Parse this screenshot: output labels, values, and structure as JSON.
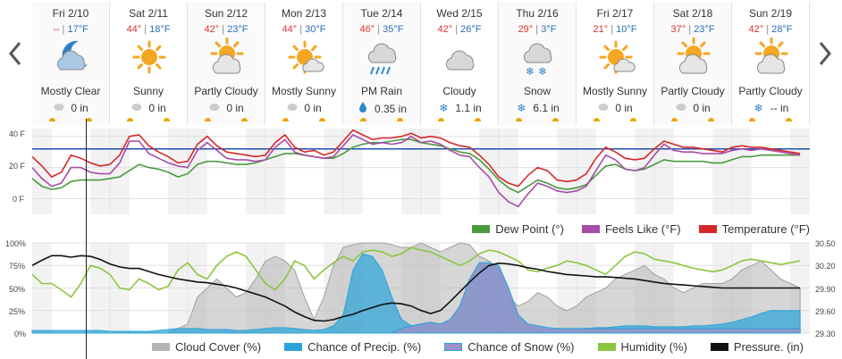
{
  "days": [
    {
      "day": "Fri 2/10",
      "hi": "--",
      "lo": "17°F",
      "icon": "moon-cloud-icon",
      "cond": "Mostly Clear",
      "precip_icon": "drop-gray-icon",
      "precip": "0 in"
    },
    {
      "day": "Sat 2/11",
      "hi": "44°",
      "lo": "18°F",
      "icon": "sun-icon",
      "cond": "Sunny",
      "precip_icon": "drop-gray-icon",
      "precip": "0 in"
    },
    {
      "day": "Sun 2/12",
      "hi": "42°",
      "lo": "23°F",
      "icon": "partly-cloudy-icon",
      "cond": "Partly Cloudy",
      "precip_icon": "drop-gray-icon",
      "precip": "0 in"
    },
    {
      "day": "Mon 2/13",
      "hi": "44°",
      "lo": "30°F",
      "icon": "mostly-sunny-icon",
      "cond": "Mostly Sunny",
      "precip_icon": "drop-gray-icon",
      "precip": "0 in"
    },
    {
      "day": "Tue 2/14",
      "hi": "46°",
      "lo": "35°F",
      "icon": "rain-icon",
      "cond": "PM Rain",
      "precip_icon": "drop-blue-icon",
      "precip": "0.35 in"
    },
    {
      "day": "Wed 2/15",
      "hi": "42°",
      "lo": "26°F",
      "icon": "cloud-icon",
      "cond": "Cloudy",
      "precip_icon": "snowflake-icon",
      "precip": "1.1 in"
    },
    {
      "day": "Thu 2/16",
      "hi": "29°",
      "lo": "3°F",
      "icon": "snow-icon",
      "cond": "Snow",
      "precip_icon": "snowflake-icon",
      "precip": "6.1 in"
    },
    {
      "day": "Fri 2/17",
      "hi": "21°",
      "lo": "10°F",
      "icon": "mostly-sunny-icon",
      "cond": "Mostly Sunny",
      "precip_icon": "drop-gray-icon",
      "precip": "0 in"
    },
    {
      "day": "Sat 2/18",
      "hi": "37°",
      "lo": "23°F",
      "icon": "partly-cloudy-icon",
      "cond": "Partly Cloudy",
      "precip_icon": "drop-gray-icon",
      "precip": "0 in"
    },
    {
      "day": "Sun 2/19",
      "hi": "42°",
      "lo": "28°F",
      "icon": "partly-cloudy-icon",
      "cond": "Partly Cloudy",
      "precip_icon": "snowflake-icon",
      "precip": "-- in"
    }
  ],
  "colors": {
    "temperature": "#d62728",
    "feels_like": "#a64ca6",
    "dew_point": "#4a9a3f",
    "cloud": "#b5b5b5",
    "precip": "#2aa3d8",
    "snow": "#9e8fc7",
    "humidity": "#8cc63f",
    "pressure": "#111111",
    "freezing": "#1f4fb0"
  },
  "chart_data": [
    {
      "type": "line",
      "ylim": [
        -10,
        45
      ],
      "yticks": [
        {
          "v": 40,
          "label": "40 F"
        },
        {
          "v": 20,
          "label": "20 F"
        },
        {
          "v": 0,
          "label": "0 F"
        }
      ],
      "reference_line": 32,
      "x_hours": [
        0,
        3,
        6,
        9,
        12,
        15,
        18,
        21,
        24,
        27,
        30,
        33,
        36,
        39,
        42,
        45,
        48,
        51,
        54,
        57,
        60,
        63,
        66,
        69,
        72,
        75,
        78,
        81,
        84,
        87,
        90,
        93,
        96,
        99,
        102,
        105,
        108,
        111,
        114,
        117,
        120,
        123,
        126,
        129,
        132,
        135,
        138,
        141,
        144,
        147,
        150,
        153,
        156,
        159,
        162,
        165,
        168,
        171,
        174,
        177,
        180,
        183,
        186,
        189,
        192,
        195,
        198,
        201,
        204,
        207,
        210,
        213,
        216,
        219,
        222,
        225,
        228,
        231,
        234,
        237
      ],
      "series": [
        {
          "name": "Temperature (°F)",
          "values": [
            27,
            21,
            14,
            17,
            28,
            26,
            23,
            21,
            22,
            28,
            40,
            41,
            34,
            30,
            27,
            23,
            24,
            35,
            40,
            34,
            30,
            29,
            28,
            27,
            28,
            36,
            41,
            33,
            30,
            31,
            28,
            30,
            37,
            44,
            41,
            38,
            39,
            39,
            40,
            42,
            39,
            40,
            39,
            36,
            34,
            33,
            28,
            22,
            14,
            10,
            8,
            15,
            20,
            18,
            12,
            11,
            12,
            16,
            26,
            33,
            30,
            26,
            25,
            26,
            32,
            37,
            35,
            33,
            33,
            32,
            31,
            30,
            33,
            34,
            33,
            33,
            32,
            31,
            30,
            29
          ]
        },
        {
          "name": "Feels Like (°F)",
          "values": [
            20,
            13,
            8,
            10,
            20,
            20,
            17,
            16,
            16,
            23,
            37,
            37,
            29,
            26,
            23,
            21,
            20,
            31,
            36,
            31,
            26,
            25,
            25,
            24,
            25,
            33,
            38,
            30,
            28,
            27,
            26,
            27,
            34,
            41,
            38,
            35,
            36,
            35,
            36,
            40,
            36,
            37,
            35,
            31,
            28,
            27,
            20,
            14,
            4,
            -2,
            -5,
            3,
            10,
            8,
            5,
            4,
            5,
            8,
            18,
            28,
            25,
            19,
            18,
            20,
            28,
            35,
            31,
            30,
            30,
            29,
            29,
            29,
            31,
            32,
            31,
            32,
            31,
            30,
            29,
            28
          ]
        },
        {
          "name": "Dew Point (°)",
          "values": [
            13,
            8,
            6,
            7,
            11,
            12,
            12,
            12,
            13,
            14,
            18,
            22,
            20,
            19,
            17,
            14,
            16,
            22,
            24,
            24,
            23,
            22,
            22,
            23,
            25,
            27,
            29,
            29,
            28,
            27,
            26,
            26,
            29,
            33,
            35,
            36,
            36,
            37,
            38,
            38,
            36,
            35,
            34,
            32,
            30,
            29,
            25,
            19,
            12,
            7,
            4,
            8,
            12,
            10,
            7,
            6,
            7,
            9,
            15,
            21,
            22,
            19,
            18,
            19,
            22,
            25,
            24,
            24,
            24,
            24,
            23,
            23,
            25,
            27,
            27,
            28,
            28,
            28,
            28,
            28
          ]
        }
      ]
    },
    {
      "type": "area",
      "ylim": [
        0,
        100
      ],
      "yticks_left": [
        {
          "v": 100,
          "label": "100%"
        },
        {
          "v": 75,
          "label": "75%"
        },
        {
          "v": 50,
          "label": "50%"
        },
        {
          "v": 25,
          "label": "25%"
        },
        {
          "v": 0,
          "label": "0%"
        }
      ],
      "y2lim": [
        29.3,
        30.5
      ],
      "yticks_right": [
        {
          "v": 30.5,
          "label": "30.50"
        },
        {
          "v": 30.2,
          "label": "30.20"
        },
        {
          "v": 29.9,
          "label": "29.90"
        },
        {
          "v": 29.6,
          "label": "29.60"
        },
        {
          "v": 29.3,
          "label": "29.30"
        }
      ],
      "x_hours": [
        0,
        3,
        6,
        9,
        12,
        15,
        18,
        21,
        24,
        27,
        30,
        33,
        36,
        39,
        42,
        45,
        48,
        51,
        54,
        57,
        60,
        63,
        66,
        69,
        72,
        75,
        78,
        81,
        84,
        87,
        90,
        93,
        96,
        99,
        102,
        105,
        108,
        111,
        114,
        117,
        120,
        123,
        126,
        129,
        132,
        135,
        138,
        141,
        144,
        147,
        150,
        153,
        156,
        159,
        162,
        165,
        168,
        171,
        174,
        177,
        180,
        183,
        186,
        189,
        192,
        195,
        198,
        201,
        204,
        207,
        210,
        213,
        216,
        219,
        222,
        225,
        228,
        231,
        234,
        237
      ],
      "series": [
        {
          "name": "Cloud Cover (%)",
          "values": [
            0,
            0,
            0,
            0,
            0,
            0,
            0,
            0,
            0,
            0,
            0,
            0,
            0,
            0,
            0,
            5,
            10,
            40,
            50,
            60,
            50,
            40,
            45,
            60,
            80,
            85,
            80,
            70,
            40,
            15,
            40,
            75,
            95,
            98,
            100,
            100,
            100,
            98,
            95,
            95,
            100,
            95,
            90,
            95,
            100,
            98,
            85,
            80,
            70,
            40,
            30,
            35,
            45,
            40,
            30,
            25,
            30,
            40,
            45,
            50,
            60,
            65,
            70,
            75,
            65,
            60,
            50,
            45,
            50,
            55,
            55,
            55,
            60,
            70,
            75,
            80,
            70,
            60,
            55,
            50
          ]
        },
        {
          "name": "Chance of Precip. (%)",
          "values": [
            3,
            3,
            3,
            3,
            3,
            3,
            3,
            3,
            2,
            2,
            2,
            2,
            2,
            3,
            4,
            5,
            5,
            5,
            4,
            4,
            4,
            3,
            3,
            4,
            5,
            6,
            6,
            5,
            4,
            3,
            4,
            8,
            20,
            70,
            88,
            85,
            70,
            40,
            15,
            8,
            10,
            12,
            10,
            15,
            30,
            60,
            78,
            78,
            75,
            50,
            20,
            10,
            8,
            6,
            5,
            5,
            5,
            5,
            6,
            6,
            7,
            8,
            8,
            8,
            7,
            7,
            7,
            7,
            8,
            8,
            9,
            10,
            12,
            15,
            18,
            22,
            25,
            25,
            25,
            25
          ]
        },
        {
          "name": "Chance of Snow (%)",
          "values": [
            0,
            0,
            0,
            0,
            0,
            0,
            0,
            0,
            0,
            0,
            0,
            0,
            0,
            0,
            0,
            0,
            0,
            0,
            0,
            0,
            0,
            0,
            0,
            0,
            0,
            0,
            0,
            0,
            0,
            0,
            0,
            0,
            0,
            0,
            0,
            0,
            0,
            0,
            5,
            8,
            10,
            12,
            10,
            15,
            30,
            60,
            78,
            78,
            75,
            50,
            20,
            10,
            8,
            6,
            5,
            5,
            5,
            5,
            5,
            5,
            5,
            5,
            5,
            5,
            5,
            5,
            5,
            5,
            5,
            5,
            5,
            5,
            5,
            5,
            5,
            5,
            5,
            5,
            5,
            5
          ]
        },
        {
          "name": "Humidity (%)",
          "values": [
            65,
            55,
            55,
            48,
            40,
            55,
            75,
            72,
            65,
            50,
            48,
            60,
            55,
            48,
            52,
            70,
            78,
            65,
            60,
            75,
            85,
            90,
            85,
            70,
            55,
            48,
            60,
            80,
            75,
            60,
            70,
            78,
            85,
            80,
            90,
            92,
            90,
            85,
            88,
            95,
            92,
            90,
            85,
            80,
            75,
            80,
            88,
            92,
            90,
            85,
            80,
            70,
            68,
            72,
            75,
            80,
            78,
            75,
            70,
            65,
            75,
            85,
            90,
            88,
            82,
            80,
            78,
            75,
            72,
            70,
            68,
            70,
            75,
            80,
            82,
            80,
            78,
            76,
            78,
            80
          ]
        },
        {
          "name": "Pressure. (in)",
          "values": [
            30.2,
            30.27,
            30.33,
            30.33,
            30.31,
            30.33,
            30.32,
            30.28,
            30.22,
            30.18,
            30.16,
            30.16,
            30.12,
            30.08,
            30.05,
            30.02,
            30.0,
            29.98,
            29.97,
            29.95,
            29.93,
            29.9,
            29.86,
            29.82,
            29.78,
            29.72,
            29.66,
            29.58,
            29.52,
            29.47,
            29.46,
            29.48,
            29.52,
            29.55,
            29.6,
            29.64,
            29.68,
            29.7,
            29.69,
            29.66,
            29.6,
            29.56,
            29.6,
            29.72,
            29.85,
            29.98,
            30.1,
            30.2,
            30.23,
            30.22,
            30.2,
            30.17,
            30.15,
            30.12,
            30.1,
            30.08,
            30.07,
            30.06,
            30.05,
            30.05,
            30.04,
            30.03,
            30.02,
            30.0,
            29.98,
            29.96,
            29.95,
            29.94,
            29.93,
            29.92,
            29.91,
            29.9,
            29.9,
            29.9,
            29.9,
            29.9,
            29.9,
            29.9,
            29.9,
            29.9
          ]
        }
      ]
    }
  ],
  "legend_top": [
    "Dew Point (°)",
    "Feels Like (°F)",
    "Temperature (°F)"
  ],
  "legend_bottom": [
    "Cloud Cover (%)",
    "Chance of Precip. (%)",
    "Chance of Snow (%)",
    "Humidity (%)",
    "Pressure. (in)"
  ],
  "temp_axis": {
    "t40": "40 F",
    "t20": "20 F",
    "t0": "0 F"
  },
  "pct_axis": {
    "p100": "100%",
    "p75": "75%",
    "p50": "50%",
    "p25": "25%",
    "p0": "0%"
  },
  "pres_axis": {
    "a": "30.50",
    "b": "30.20",
    "c": "29.90",
    "d": "29.60",
    "e": "29.30"
  }
}
